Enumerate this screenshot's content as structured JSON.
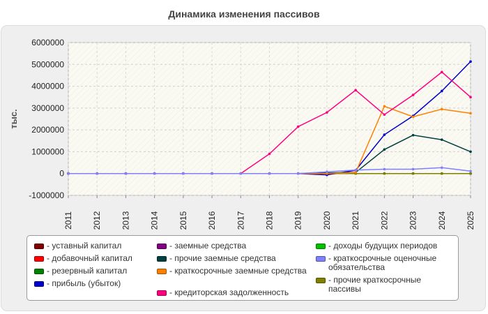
{
  "chart_data": {
    "type": "line",
    "title": "Динамика изменения пассивов",
    "ylabel": "тыс.",
    "xlabel": "",
    "ylim": [
      -1000000,
      6000000
    ],
    "yticks": [
      -1000000,
      0,
      1000000,
      2000000,
      3000000,
      4000000,
      5000000,
      6000000
    ],
    "x": [
      2011,
      2012,
      2013,
      2014,
      2015,
      2016,
      2017,
      2018,
      2019,
      2020,
      2021,
      2022,
      2023,
      2024,
      2025
    ],
    "legend_position": "bottom",
    "grid": true,
    "series": [
      {
        "name": "уставный капитал",
        "color": "#800000",
        "values": [
          0,
          0,
          0,
          0,
          0,
          0,
          0,
          0,
          0,
          0,
          0,
          0,
          0,
          0,
          0
        ]
      },
      {
        "name": "добавочный капитал",
        "color": "#ff0000",
        "values": [
          0,
          0,
          0,
          0,
          0,
          0,
          0,
          0,
          0,
          0,
          0,
          0,
          0,
          0,
          0
        ]
      },
      {
        "name": "резервный капитал",
        "color": "#008000",
        "values": [
          0,
          0,
          0,
          0,
          0,
          0,
          0,
          0,
          0,
          0,
          0,
          0,
          0,
          0,
          0
        ]
      },
      {
        "name": "прибыль (убыток)",
        "color": "#0000cc",
        "values": [
          0,
          0,
          0,
          0,
          0,
          0,
          0,
          0,
          0,
          -60000,
          150000,
          1780000,
          2640000,
          3780000,
          5130000
        ]
      },
      {
        "name": "заемные средства",
        "color": "#800080",
        "values": [
          0,
          0,
          0,
          0,
          0,
          0,
          0,
          0,
          0,
          0,
          0,
          0,
          0,
          0,
          0
        ]
      },
      {
        "name": "прочие заемные средства",
        "color": "#004040",
        "values": [
          0,
          0,
          0,
          0,
          0,
          0,
          0,
          0,
          0,
          30000,
          50000,
          1100000,
          1760000,
          1550000,
          1000000
        ]
      },
      {
        "name": "краткосрочные заемные средства",
        "color": "#ff8000",
        "values": [
          0,
          0,
          0,
          0,
          0,
          0,
          0,
          0,
          0,
          0,
          50000,
          3080000,
          2600000,
          2950000,
          2760000
        ]
      },
      {
        "name": "кредиторская задолженность",
        "color": "#ff0080",
        "values": [
          0,
          0,
          0,
          0,
          0,
          0,
          0,
          900000,
          2150000,
          2800000,
          3820000,
          2700000,
          3600000,
          4650000,
          3500000
        ]
      },
      {
        "name": "доходы будущих периодов",
        "color": "#00c000",
        "values": [
          0,
          0,
          0,
          0,
          0,
          0,
          0,
          0,
          0,
          0,
          0,
          0,
          0,
          0,
          0
        ]
      },
      {
        "name": "краткосрочные оценочные обязательства",
        "color": "#8080ff",
        "values": [
          0,
          0,
          0,
          0,
          0,
          0,
          0,
          0,
          0,
          80000,
          160000,
          200000,
          200000,
          270000,
          110000
        ]
      },
      {
        "name": "прочие краткосрочные пассивы",
        "color": "#808000",
        "values": [
          0,
          0,
          0,
          0,
          0,
          0,
          0,
          0,
          0,
          0,
          0,
          0,
          0,
          0,
          0
        ]
      }
    ]
  }
}
